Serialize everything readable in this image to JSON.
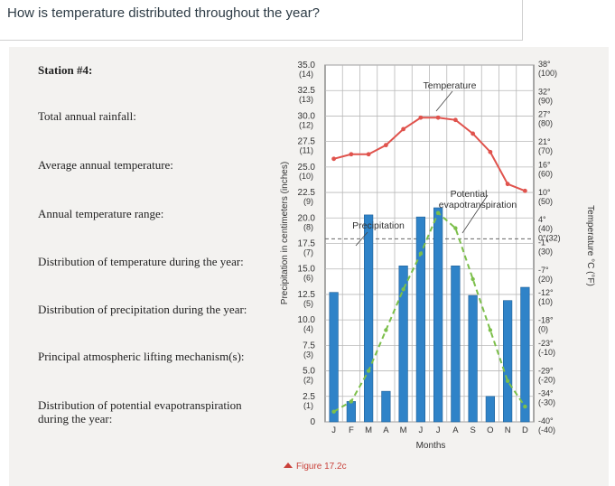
{
  "question": "How is temperature distributed throughout the year?",
  "station_labels": [
    "Station #4:",
    "Total annual rainfall:",
    "Average annual temperature:",
    "Annual temperature range:",
    "Distribution of temperature during the year:",
    "Distribution of precipitation during the year:",
    "Principal atmospheric lifting mechanism(s):",
    "Distribution of potential evapotranspiration",
    "during the year:"
  ],
  "figure_caption": "Figure 17.2c",
  "colors": {
    "bar": "#2f83c8",
    "temperature_line": "#e0534d",
    "evapotranspiration_line": "#7cbf4a",
    "caption": "#c9413a"
  },
  "chart_data": {
    "type": "bar",
    "categories": [
      "J",
      "F",
      "M",
      "A",
      "M",
      "J",
      "J",
      "A",
      "S",
      "O",
      "N",
      "D"
    ],
    "xlabel": "Months",
    "ylabel_left": "Precipitation in centimeters (inches)",
    "ylabel_right": "Temperature °C (°F)",
    "left_axis": {
      "ylim": [
        0,
        35
      ],
      "ticks": [
        {
          "value": 35.0,
          "label": "35.0",
          "sub": "(14)"
        },
        {
          "value": 32.5,
          "label": "32.5",
          "sub": "(13)"
        },
        {
          "value": 30.0,
          "label": "30.0",
          "sub": "(12)"
        },
        {
          "value": 27.5,
          "label": "27.5",
          "sub": "(11)"
        },
        {
          "value": 25.0,
          "label": "25.0",
          "sub": "(10)"
        },
        {
          "value": 22.5,
          "label": "22.5",
          "sub": "(9)"
        },
        {
          "value": 20.0,
          "label": "20.0",
          "sub": "(8)"
        },
        {
          "value": 17.5,
          "label": "17.5",
          "sub": "(7)"
        },
        {
          "value": 15.0,
          "label": "15.0",
          "sub": "(6)"
        },
        {
          "value": 12.5,
          "label": "12.5",
          "sub": "(5)"
        },
        {
          "value": 10.0,
          "label": "10.0",
          "sub": "(4)"
        },
        {
          "value": 7.5,
          "label": "7.5",
          "sub": "(3)"
        },
        {
          "value": 5.0,
          "label": "5.0",
          "sub": "(2)"
        },
        {
          "value": 2.5,
          "label": "2.5",
          "sub": "(1)"
        },
        {
          "value": 0,
          "label": "0",
          "sub": ""
        }
      ]
    },
    "right_axis": {
      "ylim": [
        -40,
        38
      ],
      "ticks": [
        {
          "value": 38,
          "label": "38°",
          "sub": "(100)"
        },
        {
          "value": 32,
          "label": "32°",
          "sub": "(90)"
        },
        {
          "value": 27,
          "label": "27°",
          "sub": "(80)"
        },
        {
          "value": 21,
          "label": "21°",
          "sub": "(70)"
        },
        {
          "value": 16,
          "label": "16°",
          "sub": "(60)"
        },
        {
          "value": 10,
          "label": "10°",
          "sub": "(50)"
        },
        {
          "value": 4,
          "label": "4°",
          "sub": "(40)"
        },
        {
          "value": 0,
          "label": "0°(32)",
          "sub": ""
        },
        {
          "value": -1,
          "label": "-1°",
          "sub": "(30)"
        },
        {
          "value": -7,
          "label": "-7°",
          "sub": "(20)"
        },
        {
          "value": -12,
          "label": "-12°",
          "sub": "(10)"
        },
        {
          "value": -18,
          "label": "-18°",
          "sub": "(0)"
        },
        {
          "value": -23,
          "label": "-23°",
          "sub": "(-10)"
        },
        {
          "value": -29,
          "label": "-29°",
          "sub": "(-20)"
        },
        {
          "value": -34,
          "label": "-34°",
          "sub": "(-30)"
        },
        {
          "value": -40,
          "label": "-40°",
          "sub": "(-40)"
        }
      ]
    },
    "series": [
      {
        "name": "Precipitation",
        "type": "bar",
        "axis": "left",
        "values": [
          12.7,
          2.0,
          20.3,
          3.0,
          15.3,
          20.1,
          21.0,
          15.3,
          12.4,
          2.5,
          11.9,
          13.2
        ]
      },
      {
        "name": "Temperature",
        "type": "line",
        "axis": "right",
        "values": [
          17.5,
          18.5,
          18.5,
          20.5,
          24.0,
          26.5,
          26.5,
          26.0,
          23.0,
          19.0,
          12.0,
          10.5
        ]
      },
      {
        "name": "Potential evapotranspiration",
        "type": "line",
        "style": "dashed",
        "axis": "left",
        "values": [
          1.0,
          2.0,
          5.0,
          9.0,
          13.0,
          16.5,
          20.5,
          19.0,
          14.0,
          9.0,
          4.0,
          1.5
        ]
      }
    ],
    "annotations": [
      "Temperature",
      "Potential",
      "evapotranspiration",
      "Precipitation"
    ],
    "grid": true
  }
}
